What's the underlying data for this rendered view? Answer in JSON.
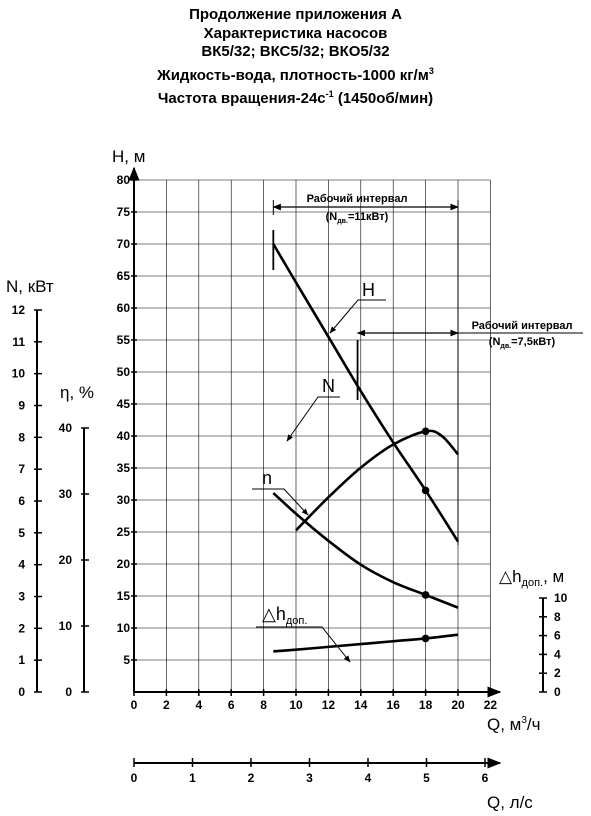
{
  "title": {
    "line1": "Продолжение приложения А",
    "line2": "Характеристика насосов",
    "line3": "ВК5/32; ВКС5/32; ВКО5/32",
    "line4_main": "Жидкость-вода, плотность-1000 кг/м",
    "line4_sup": "3",
    "line5_pre": "Частота вращения-24с",
    "line5_sup": "-1",
    "line5_post": " (1450об/мин)"
  },
  "chart_data": {
    "type": "line",
    "x_axis": {
      "label_main": "Q, м",
      "label_sup": "3",
      "label_post": "/ч",
      "range": [
        0,
        22
      ],
      "ticks": [
        "0",
        "2",
        "4",
        "6",
        "8",
        "10",
        "12",
        "14",
        "16",
        "18",
        "20",
        "22"
      ]
    },
    "x2_axis": {
      "label": "Q, л/с",
      "range": [
        0,
        6
      ],
      "ticks": [
        "0",
        "1",
        "2",
        "3",
        "4",
        "5",
        "6"
      ]
    },
    "y_axis_H": {
      "label": "H, м",
      "range": [
        0,
        80
      ],
      "ticks": [
        "5",
        "10",
        "15",
        "20",
        "25",
        "30",
        "35",
        "40",
        "45",
        "50",
        "55",
        "60",
        "65",
        "70",
        "75",
        "80"
      ]
    },
    "y_axis_N": {
      "label": "N, кВт",
      "range": [
        0,
        12
      ],
      "ticks": [
        "0",
        "1",
        "2",
        "3",
        "4",
        "5",
        "6",
        "7",
        "8",
        "9",
        "10",
        "11",
        "12"
      ]
    },
    "y_axis_eta": {
      "label": "η, %",
      "range": [
        0,
        40
      ],
      "ticks": [
        "0",
        "10",
        "20",
        "30",
        "40"
      ]
    },
    "y_axis_dh": {
      "label_main": "△h",
      "label_sub": "доп.",
      "label_post": ", м",
      "range": [
        0,
        10
      ],
      "ticks": [
        "0",
        "2",
        "4",
        "6",
        "8",
        "10"
      ]
    },
    "series": [
      {
        "name": "H",
        "axis": "H",
        "x": [
          8.6,
          10,
          12,
          14,
          16,
          18,
          20
        ],
        "y": [
          70,
          64,
          55.5,
          47,
          39,
          31.5,
          23.5
        ]
      },
      {
        "name": "N",
        "axis": "N",
        "x": [
          8.6,
          10,
          12,
          14,
          16,
          18,
          20
        ],
        "y": [
          6.25,
          5.6,
          4.75,
          4.0,
          3.45,
          3.05,
          2.65
        ]
      },
      {
        "name": "n",
        "axis": "eta",
        "x": [
          10,
          12,
          14,
          16,
          18,
          19,
          20
        ],
        "y": [
          24.5,
          29.5,
          34,
          37.5,
          39.5,
          38.8,
          36
        ]
      },
      {
        "name": "△h",
        "sub": "доп.",
        "axis": "dh",
        "x": [
          8.6,
          10,
          12,
          14,
          16,
          18,
          20
        ],
        "y": [
          4.33,
          4.5,
          4.8,
          5.1,
          5.4,
          5.7,
          6.1
        ]
      }
    ],
    "markers": [
      {
        "series": "H",
        "x": 18,
        "y": 31.5
      },
      {
        "series": "N",
        "x": 18,
        "y": 3.05
      },
      {
        "series": "n",
        "x": 18,
        "y": 39.5
      },
      {
        "series": "△h",
        "x": 18,
        "y": 5.7
      }
    ],
    "annotations": {
      "interval1": {
        "text": "Рабочий интервал",
        "sub_pre": "(N",
        "sub_sub": "дв.",
        "sub_post": "=11кВт)",
        "x_range": [
          8.6,
          20
        ]
      },
      "interval2": {
        "text": "Рабочий интервал",
        "sub_pre": "(N",
        "sub_sub": "дв.",
        "sub_post": "=7,5кВт)",
        "x_range": [
          13.8,
          20
        ]
      }
    },
    "grid": true
  }
}
